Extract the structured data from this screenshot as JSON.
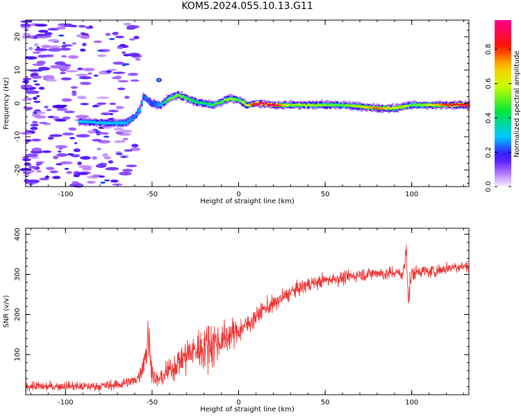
{
  "title": "KOM5.2024.055.10.13.G11",
  "chart_data": [
    {
      "type": "heatmap",
      "xlabel": "Height of straight line (km)",
      "ylabel": "Frequency (Hz)",
      "xlim": [
        -123,
        133
      ],
      "ylim": [
        -25,
        25
      ],
      "xticks": [
        -100,
        -50,
        0,
        50,
        100
      ],
      "yticks": [
        -20,
        -10,
        0,
        10,
        20
      ],
      "colorbar": {
        "label": "Normalized spectral amplitude",
        "range": [
          0.0,
          0.97
        ],
        "ticks": [
          0.0,
          0.2,
          0.4,
          0.6,
          0.8
        ],
        "tick_labels": [
          "0.0",
          "0.2",
          "0.4",
          "0.6",
          "0.8"
        ],
        "colormap": "rainbow (white-violet-blue-cyan-green-yellow-red-magenta)"
      },
      "ridge": {
        "x": [
          -90,
          -80,
          -70,
          -65,
          -60,
          -57,
          -55,
          -50,
          -45,
          -40,
          -35,
          -30,
          -25,
          -20,
          -15,
          -10,
          -5,
          0,
          5,
          10,
          20,
          30,
          40,
          50,
          60,
          70,
          80,
          90,
          95,
          100,
          110,
          120,
          133
        ],
        "y": [
          -5.5,
          -5.8,
          -6.0,
          -5.8,
          -4.0,
          -2.0,
          2.0,
          0.0,
          -0.5,
          1.5,
          2.5,
          1.5,
          0.5,
          0.0,
          -0.5,
          0.5,
          1.5,
          1.0,
          -0.5,
          0.0,
          -0.5,
          -0.5,
          -0.5,
          -0.5,
          -0.5,
          -1.0,
          -1.5,
          -1.5,
          -1.0,
          -0.5,
          -0.5,
          -0.5,
          -0.5
        ],
        "amplitude": [
          0.3,
          0.3,
          0.3,
          0.3,
          0.25,
          0.3,
          0.25,
          0.2,
          0.3,
          0.55,
          0.55,
          0.5,
          0.45,
          0.4,
          0.5,
          0.5,
          0.6,
          0.5,
          0.65,
          0.95,
          0.95,
          0.55,
          0.6,
          0.55,
          0.5,
          0.65,
          0.8,
          0.6,
          0.65,
          0.5,
          0.6,
          0.85,
          0.9
        ]
      }
    },
    {
      "type": "line",
      "xlabel": "Height of straight line (km)",
      "ylabel": "SNR (v/v)",
      "xlim": [
        -123,
        133
      ],
      "ylim": [
        0,
        415
      ],
      "xticks": [
        -100,
        -50,
        0,
        50,
        100
      ],
      "yticks": [
        100,
        200,
        300,
        400
      ],
      "series": [
        {
          "color": "#ee3333",
          "x": [
            -123,
            -110,
            -100,
            -90,
            -80,
            -70,
            -65,
            -60,
            -57,
            -54,
            -52,
            -50,
            -48,
            -45,
            -40,
            -35,
            -30,
            -25,
            -20,
            -15,
            -10,
            -5,
            0,
            5,
            10,
            15,
            20,
            25,
            30,
            35,
            40,
            45,
            50,
            55,
            60,
            65,
            70,
            75,
            80,
            85,
            90,
            95,
            97,
            98,
            100,
            105,
            110,
            115,
            120,
            125,
            133
          ],
          "y": [
            22,
            20,
            22,
            20,
            22,
            25,
            30,
            35,
            50,
            100,
            140,
            60,
            35,
            40,
            60,
            80,
            100,
            110,
            120,
            130,
            135,
            150,
            160,
            175,
            195,
            215,
            225,
            240,
            255,
            265,
            275,
            280,
            285,
            290,
            290,
            295,
            300,
            300,
            305,
            300,
            305,
            300,
            360,
            250,
            300,
            310,
            305,
            310,
            315,
            320,
            320
          ],
          "noise": [
            10,
            10,
            10,
            10,
            10,
            12,
            12,
            12,
            14,
            40,
            50,
            25,
            15,
            20,
            25,
            30,
            40,
            40,
            50,
            50,
            40,
            30,
            25,
            22,
            20,
            20,
            18,
            18,
            16,
            16,
            15,
            15,
            15,
            14,
            14,
            14,
            14,
            14,
            14,
            14,
            14,
            15,
            40,
            50,
            15,
            14,
            14,
            14,
            14,
            14,
            14
          ]
        }
      ]
    }
  ]
}
